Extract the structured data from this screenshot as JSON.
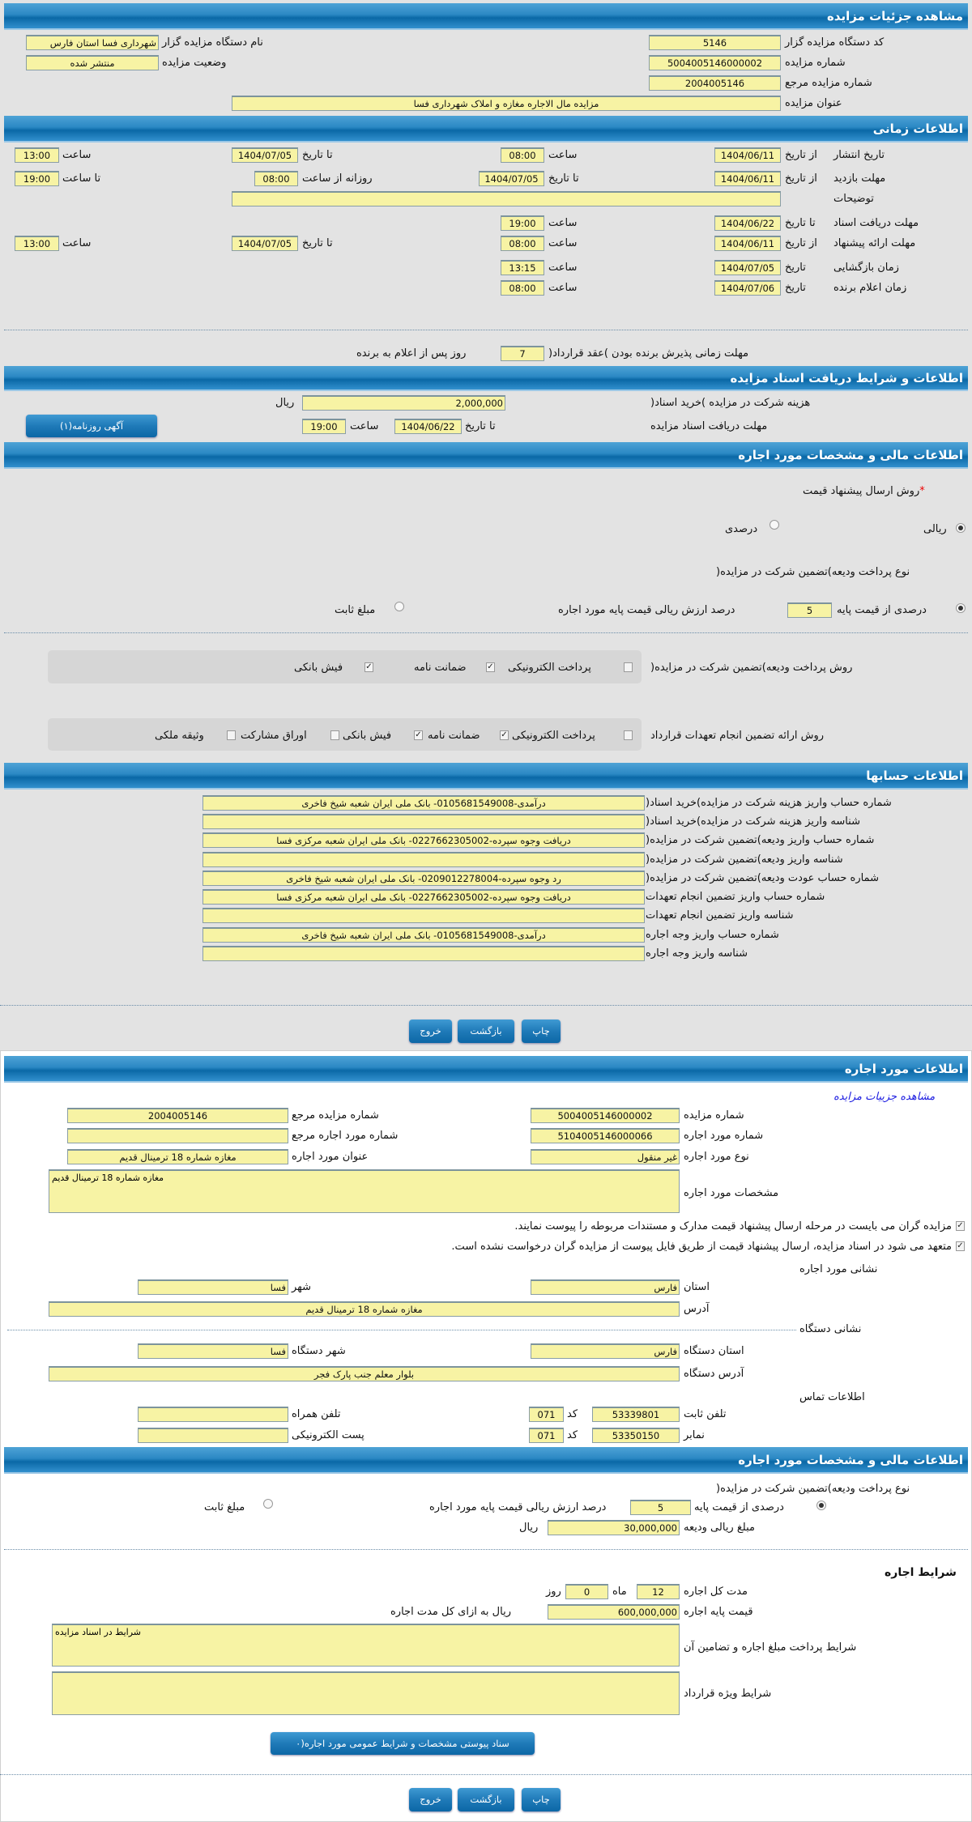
{
  "s1": {
    "title": "مشاهده جزئیات مزایده",
    "code_label": "کد دستگاه مزایده گزار",
    "code": "5146",
    "org_label": "نام دستگاه مزایده گزار",
    "org": "شهرداری فسا استان فارس",
    "num_label": "شماره مزایده",
    "num": "5004005146000002",
    "status_label": "وضعیت مزایده",
    "status": "منتشر شده",
    "ref_label": "شماره مزایده مرجع",
    "ref": "2004005146",
    "subject_label": "عنوان مزایده",
    "subject": "مزایده مال الاجاره مغازه و املاک شهرداری فسا"
  },
  "s2": {
    "title": "اطلاعات زمانی",
    "from_date": "از تاریخ",
    "to_date": "تا تاریخ",
    "date": "تاریخ",
    "hour": "ساعت",
    "to_hour": "تا ساعت",
    "daily_from": "روزانه از ساعت",
    "publish_label": "تاریخ انتشار",
    "publish_from": "1404/06/11",
    "publish_from_time": "08:00",
    "publish_to": "1404/07/05",
    "publish_to_time": "13:00",
    "visit_label": "مهلت بازدید",
    "visit_from": "1404/06/11",
    "visit_to": "1404/07/05",
    "visit_daily_from": "08:00",
    "visit_daily_to": "19:00",
    "desc_label": "توضیحات",
    "desc": "",
    "docs_label": "مهلت دریافت اسناد",
    "docs_to": "1404/06/22",
    "docs_to_time": "19:00",
    "offer_label": "مهلت ارائه پیشنهاد",
    "offer_from": "1404/06/11",
    "offer_from_time": "08:00",
    "offer_to": "1404/07/05",
    "offer_to_time": "13:00",
    "open_label": "زمان بازگشایی",
    "open_date": "1404/07/05",
    "open_time": "13:15",
    "winner_label": "زمان اعلام برنده",
    "winner_date": "1404/07/06",
    "winner_time": "08:00",
    "contract_label": "مهلت زمانی پذیرش برنده بودن )عقد قرارداد(",
    "contract_days": "7",
    "contract_suffix": "روز پس از اعلام به برنده"
  },
  "s3": {
    "title": "اطلاعات و شرایط دریافت اسناد مزایده",
    "fee_label": "هزینه شرکت در مزایده )خرید اسناد(",
    "fee": "2,000,000",
    "currency": "ریال",
    "deadline_label": "مهلت دریافت اسناد مزایده",
    "to_date": "تا تاریخ",
    "deadline_date": "1404/06/22",
    "hour": "ساعت",
    "deadline_time": "19:00",
    "newspaper_button": "آگهی روزنامه(۱)"
  },
  "s4": {
    "title": "اطلاعات مالی و مشخصات مورد اجاره",
    "required_mark": "*",
    "method_label": "روش ارسال پیشنهاد قیمت",
    "method_options": [
      {
        "label": "ریالی",
        "selected": true
      },
      {
        "label": "درصدی",
        "selected": false
      }
    ],
    "deposit_type_label": "نوع پرداخت ودیعه)تضمین شرکت در مزایده(",
    "deposit_percent_label": "درصدی از قیمت پایه",
    "deposit_percent": "5",
    "deposit_percent_suffix": "درصد ارزش ریالی قیمت پایه مورد اجاره",
    "deposit_percent_selected": true,
    "deposit_fixed_label": "مبلغ ثابت",
    "deposit_fixed_selected": false,
    "payment_method_label": "روش پرداخت ودیعه)تضمین شرکت در مزایده(",
    "payment_methods": [
      {
        "label": "پرداخت الکترونیکی",
        "checked": false
      },
      {
        "label": "ضمانت نامه",
        "checked": true
      },
      {
        "label": "فیش بانکی",
        "checked": true
      }
    ],
    "guarantee_label": "روش ارائه تضمین انجام تعهدات قرارداد",
    "guarantees": [
      {
        "label": "پرداخت الکترونیکی",
        "checked": false
      },
      {
        "label": "ضمانت نامه",
        "checked": true
      },
      {
        "label": "فیش بانکی",
        "checked": true
      },
      {
        "label": "اوراق مشارکت",
        "checked": false
      },
      {
        "label": "وثیقه ملکی",
        "checked": false
      }
    ],
    "check_mark": "✓"
  },
  "s5": {
    "title": "اطلاعات حسابها",
    "rows": [
      {
        "label": "شماره حساب واریز هزینه شرکت در مزایده)خرید اسناد(",
        "value": "درآمدی-0105681549008- بانک ملی ایران شعبه شیخ فاخری"
      },
      {
        "label": "شناسه واریز هزینه شرکت در مزایده)خرید اسناد(",
        "value": ""
      },
      {
        "label": "شماره حساب واریز ودیعه)تضمین شرکت در مزایده(",
        "value": "دریافت وجوه سپرده-0227662305002- بانک ملی ایران شعبه مرکزی فسا"
      },
      {
        "label": "شناسه واریز ودیعه)تضمین شرکت در مزایده(",
        "value": ""
      },
      {
        "label": "شماره حساب عودت ودیعه)تضمین شرکت در مزایده(",
        "value": "رد وجوه سپرده-0209012278004- بانک ملی ایران شعبه شیخ فاخری"
      },
      {
        "label": "شماره حساب واریز تضمین انجام تعهدات",
        "value": "دریافت وجوه سپرده-0227662305002- بانک ملی ایران شعبه مرکزی فسا"
      },
      {
        "label": "شناسه واریز تضمین انجام تعهدات",
        "value": ""
      },
      {
        "label": "شماره حساب واریز وجه اجاره",
        "value": "درآمدی-0105681549008- بانک ملی ایران شعبه شیخ فاخری"
      },
      {
        "label": "شناسه واریز وجه اجاره",
        "value": ""
      }
    ]
  },
  "buttons": {
    "print": "چاپ",
    "back": "بازگشت",
    "exit": "خروج"
  },
  "lease": {
    "title": "اطلاعات مورد اجاره",
    "view_link": "مشاهده جزییات مزایده",
    "num_label": "شماره مزایده",
    "num": "5004005146000002",
    "ref_label": "شماره مزایده مرجع",
    "ref": "2004005146",
    "item_label": "شماره مورد اجاره",
    "item": "5104005146000066",
    "item_ref_label": "شماره مورد اجاره مرجع",
    "item_ref": "",
    "type_label": "نوع مورد اجاره",
    "type": "غیر منقول",
    "item_title_label": "عنوان مورد اجاره",
    "item_title": "مغازه شماره 18 ترمینال قدیم",
    "spec_label": "مشخصات مورد اجاره",
    "spec": "مغازه شماره 18 ترمینال قدیم",
    "notice1": "مزایده گران می بایست در مرحله ارسال پیشنهاد قیمت مدارک و مستندات مربوطه را پیوست نمایند.",
    "notice2": "متعهد می شود در اسناد مزایده، ارسال پیشنهاد قیمت از طریق فایل پیوست از مزایده گران درخواست نشده است.",
    "addr_heading": "نشانی مورد اجاره",
    "province_label": "استان",
    "province": "فارس",
    "city_label": "شهر",
    "city": "فسا",
    "address_label": "آدرس",
    "address": "مغازه شماره 18 ترمینال قدیم",
    "org_heading": "نشانی دستگاه",
    "org_province_label": "استان دستگاه",
    "org_province": "فارس",
    "org_city_label": "شهر دستگاه",
    "org_city": "فسا",
    "org_address_label": "آدرس دستگاه",
    "org_address": "بلوار معلم جنب پارک فجر",
    "contact_heading": "اطلاعات تماس",
    "phone_label": "تلفن ثابت",
    "phone": "53339801",
    "code_label": "کد",
    "phone_code": "071",
    "mobile_label": "تلفن همراه",
    "mobile": "",
    "fax_label": "نمابر",
    "fax": "53350150",
    "fax_code": "071",
    "email_label": "پست الکترونیکی",
    "email": ""
  },
  "lease_fin": {
    "title": "اطلاعات مالی و مشخصات مورد اجاره",
    "deposit_type_label": "نوع پرداخت ودیعه)تضمین شرکت در مزایده(",
    "deposit_percent_label": "درصدی از قیمت پایه",
    "deposit_percent": "5",
    "deposit_percent_suffix": "درصد ارزش ریالی قیمت پایه مورد اجاره",
    "deposit_fixed_label": "مبلغ ثابت",
    "deposit_amount_label": "مبلغ ریالی ودیعه",
    "deposit_amount": "30,000,000",
    "currency": "ریال",
    "terms_heading": "شرایط اجاره",
    "duration_label": "مدت کل اجاره",
    "months": "12",
    "months_unit": "ماه",
    "days": "0",
    "days_unit": "روز",
    "base_price_label": "قیمت پایه اجاره",
    "base_price": "600,000,000",
    "base_price_suffix": "ریال به ازای کل مدت اجاره",
    "payment_terms_label": "شرایط پرداخت مبلغ اجاره و تضامین آن",
    "payment_terms": "شرایط در اسناد مزایده",
    "special_terms_label": "شرایط ویژه قرارداد",
    "special_terms": "",
    "attachments_button": "سناد پیوستی مشخصات و شرایط عمومی مورد اجاره(٠"
  },
  "colors": {
    "header_blue": "#0a68a6",
    "field_yellow": "#f7f3a4",
    "link_blue": "#1a1ae0",
    "required_red": "#e00000"
  }
}
